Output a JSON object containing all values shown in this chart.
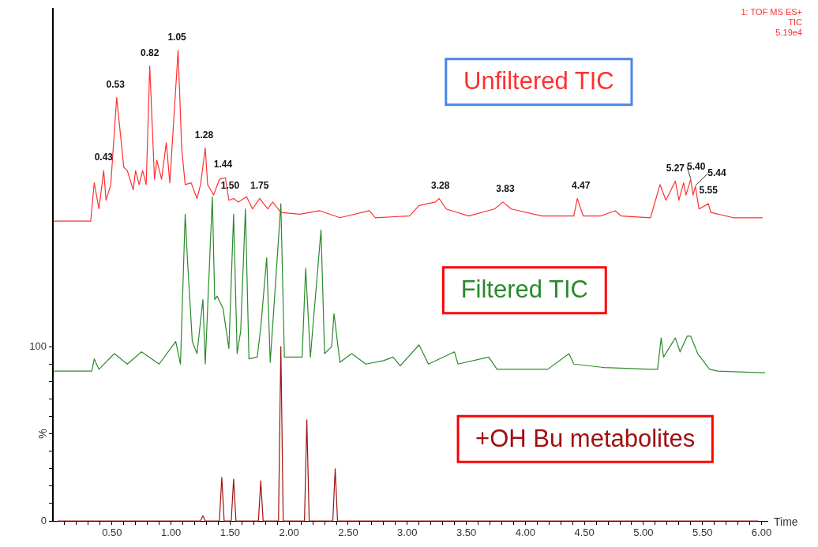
{
  "chart_data": {
    "type": "line",
    "xlabel": "Time",
    "ylabel": "%",
    "legend": false,
    "xlim": [
      0,
      6.05
    ],
    "xticks": [
      {
        "value": 0.1,
        "label": null
      },
      {
        "value": 0.2,
        "label": null
      },
      {
        "value": 0.3,
        "label": null
      },
      {
        "value": 0.4,
        "label": null
      },
      {
        "value": 0.5,
        "label": "0.50"
      },
      {
        "value": 0.6,
        "label": null
      },
      {
        "value": 0.7,
        "label": null
      },
      {
        "value": 0.8,
        "label": null
      },
      {
        "value": 0.9,
        "label": null
      },
      {
        "value": 1,
        "label": "1.00"
      },
      {
        "value": 1.1,
        "label": null
      },
      {
        "value": 1.2,
        "label": null
      },
      {
        "value": 1.3,
        "label": null
      },
      {
        "value": 1.4,
        "label": null
      },
      {
        "value": 1.5,
        "label": "1.50"
      },
      {
        "value": 1.6,
        "label": null
      },
      {
        "value": 1.7,
        "label": null
      },
      {
        "value": 1.8,
        "label": null
      },
      {
        "value": 1.9,
        "label": null
      },
      {
        "value": 2,
        "label": "2.00"
      },
      {
        "value": 2.1,
        "label": null
      },
      {
        "value": 2.2,
        "label": null
      },
      {
        "value": 2.3,
        "label": null
      },
      {
        "value": 2.4,
        "label": null
      },
      {
        "value": 2.5,
        "label": "2.50"
      },
      {
        "value": 2.6,
        "label": null
      },
      {
        "value": 2.7,
        "label": null
      },
      {
        "value": 2.8,
        "label": null
      },
      {
        "value": 2.9,
        "label": null
      },
      {
        "value": 3,
        "label": "3.00"
      },
      {
        "value": 3.1,
        "label": null
      },
      {
        "value": 3.2,
        "label": null
      },
      {
        "value": 3.3,
        "label": null
      },
      {
        "value": 3.4,
        "label": null
      },
      {
        "value": 3.5,
        "label": "3.50"
      },
      {
        "value": 3.6,
        "label": null
      },
      {
        "value": 3.7,
        "label": null
      },
      {
        "value": 3.8,
        "label": null
      },
      {
        "value": 3.9,
        "label": null
      },
      {
        "value": 4,
        "label": "4.00"
      },
      {
        "value": 4.1,
        "label": null
      },
      {
        "value": 4.2,
        "label": null
      },
      {
        "value": 4.3,
        "label": null
      },
      {
        "value": 4.4,
        "label": null
      },
      {
        "value": 4.5,
        "label": "4.50"
      },
      {
        "value": 4.6,
        "label": null
      },
      {
        "value": 4.7,
        "label": null
      },
      {
        "value": 4.8,
        "label": null
      },
      {
        "value": 4.9,
        "label": null
      },
      {
        "value": 5,
        "label": "5.00"
      },
      {
        "value": 5.1,
        "label": null
      },
      {
        "value": 5.2,
        "label": null
      },
      {
        "value": 5.3,
        "label": null
      },
      {
        "value": 5.4,
        "label": null
      },
      {
        "value": 5.5,
        "label": "5.50"
      },
      {
        "value": 5.6,
        "label": null
      },
      {
        "value": 5.7,
        "label": null
      },
      {
        "value": 5.8,
        "label": null
      },
      {
        "value": 5.9,
        "label": null
      },
      {
        "value": 6,
        "label": "6.00"
      }
    ],
    "ylim": [
      0,
      294
    ],
    "yticks": [
      0,
      {
        "value": 10,
        "label": null
      },
      {
        "value": 20,
        "label": null
      },
      {
        "value": 30,
        "label": null
      },
      {
        "value": 40,
        "label": null
      },
      {
        "value": 50,
        "label": null
      },
      {
        "value": 60,
        "label": null
      },
      {
        "value": 70,
        "label": null
      },
      {
        "value": 80,
        "label": null
      },
      {
        "value": 90,
        "label": null
      },
      100
    ],
    "series": [
      {
        "name": "Unfiltered TIC",
        "color": "#ff3030",
        "x": [
          0.01,
          0.32,
          0.35,
          0.39,
          0.43,
          0.45,
          0.49,
          0.54,
          0.6,
          0.63,
          0.68,
          0.7,
          0.73,
          0.76,
          0.79,
          0.82,
          0.86,
          0.88,
          0.92,
          0.96,
          0.99,
          1.06,
          1.09,
          1.12,
          1.17,
          1.22,
          1.25,
          1.29,
          1.31,
          1.36,
          1.41,
          1.46,
          1.49,
          1.53,
          1.57,
          1.64,
          1.69,
          1.75,
          1.82,
          1.86,
          1.93,
          2.09,
          2.26,
          2.43,
          2.68,
          2.73,
          3.02,
          3.1,
          3.24,
          3.27,
          3.33,
          3.52,
          3.74,
          3.81,
          3.88,
          4.14,
          4.41,
          4.44,
          4.49,
          4.64,
          4.76,
          4.81,
          5.06,
          5.14,
          5.19,
          5.27,
          5.3,
          5.34,
          5.36,
          5.4,
          5.42,
          5.44,
          5.47,
          5.55,
          5.57,
          5.76,
          6.01
        ],
        "values": [
          172,
          172,
          194,
          179,
          201,
          184,
          193,
          243,
          203,
          201,
          190,
          201,
          193,
          201,
          193,
          261,
          196,
          207,
          196,
          217,
          194,
          270,
          214,
          193,
          194,
          185,
          193,
          214,
          193,
          187,
          196,
          197,
          184,
          185,
          183,
          186,
          179,
          185,
          179,
          183,
          177,
          176,
          178,
          174,
          178,
          174,
          175,
          181,
          183,
          185,
          179,
          175,
          179,
          183,
          179,
          175,
          175,
          185,
          175,
          175,
          178,
          175,
          174,
          193,
          184,
          195,
          184,
          194,
          187,
          196,
          187,
          192,
          179,
          182,
          177,
          174,
          174
        ]
      },
      {
        "name": "Filtered TIC",
        "color": "#2a8a2a",
        "x": [
          0.01,
          0.33,
          0.35,
          0.39,
          0.52,
          0.63,
          0.75,
          0.9,
          1.04,
          1.08,
          1.12,
          1.14,
          1.18,
          1.22,
          1.27,
          1.29,
          1.35,
          1.37,
          1.39,
          1.44,
          1.49,
          1.53,
          1.56,
          1.59,
          1.63,
          1.66,
          1.73,
          1.76,
          1.81,
          1.84,
          1.93,
          1.96,
          2.11,
          2.14,
          2.18,
          2.27,
          2.3,
          2.36,
          2.38,
          2.43,
          2.53,
          2.65,
          2.8,
          2.88,
          2.94,
          3.1,
          3.18,
          3.4,
          3.43,
          3.69,
          3.76,
          4.19,
          4.37,
          4.41,
          4.67,
          5.06,
          5.12,
          5.15,
          5.17,
          5.27,
          5.31,
          5.37,
          5.4,
          5.46,
          5.56,
          5.63,
          6.03
        ],
        "values": [
          86,
          86,
          93,
          87,
          96,
          90,
          97,
          90,
          103,
          90,
          176,
          149,
          103,
          96,
          127,
          90,
          186,
          127,
          129,
          122,
          99,
          176,
          96,
          109,
          179,
          93,
          94,
          111,
          151,
          91,
          182,
          94,
          94,
          145,
          94,
          167,
          96,
          100,
          119,
          91,
          96,
          90,
          92,
          94,
          89,
          101,
          90,
          97,
          90,
          94,
          87,
          87,
          96,
          90,
          88,
          87,
          87,
          105,
          94,
          105,
          97,
          106,
          106,
          96,
          87,
          86,
          85
        ]
      },
      {
        "name": "+OH Bu metabolites",
        "color": "#a01010",
        "x": [
          0.04,
          1.25,
          1.27,
          1.29,
          1.41,
          1.43,
          1.45,
          1.51,
          1.53,
          1.55,
          1.74,
          1.76,
          1.78,
          1.91,
          1.93,
          1.95,
          2.13,
          2.15,
          2.17,
          2.37,
          2.39,
          2.41,
          5.97
        ],
        "values": [
          0,
          0,
          3,
          0,
          0,
          25,
          0,
          0,
          24,
          0,
          0,
          23,
          0,
          0,
          100,
          0,
          0,
          58,
          0,
          0,
          30,
          0,
          0
        ]
      }
    ],
    "annotations": [
      "1: TOF MS ES+",
      "TIC",
      "5.19e4",
      {
        "text": "0.43",
        "x": 0.43,
        "y": 201
      },
      {
        "text": "0.53",
        "x": 0.53,
        "y": 243
      },
      {
        "text": "0.82",
        "x": 0.82,
        "y": 261
      },
      {
        "text": "1.05",
        "x": 1.05,
        "y": 270
      },
      {
        "text": "1.28",
        "x": 1.28,
        "y": 214
      },
      {
        "text": "1.44",
        "x": 1.44,
        "y": 197
      },
      {
        "text": "1.50",
        "x": 1.5,
        "y": 185
      },
      {
        "text": "1.75",
        "x": 1.75,
        "y": 185
      },
      {
        "text": "3.28",
        "x": 3.28,
        "y": 185
      },
      {
        "text": "3.83",
        "x": 3.83,
        "y": 183
      },
      {
        "text": "4.47",
        "x": 4.47,
        "y": 185
      },
      {
        "text": "5.27",
        "x": 5.27,
        "y": 195
      },
      {
        "text": "5.40",
        "x": 5.4,
        "y": 196
      },
      {
        "text": "5.44",
        "x": 5.44,
        "y": 192
      },
      {
        "text": "5.55",
        "x": 5.55,
        "y": 182
      }
    ]
  }
}
